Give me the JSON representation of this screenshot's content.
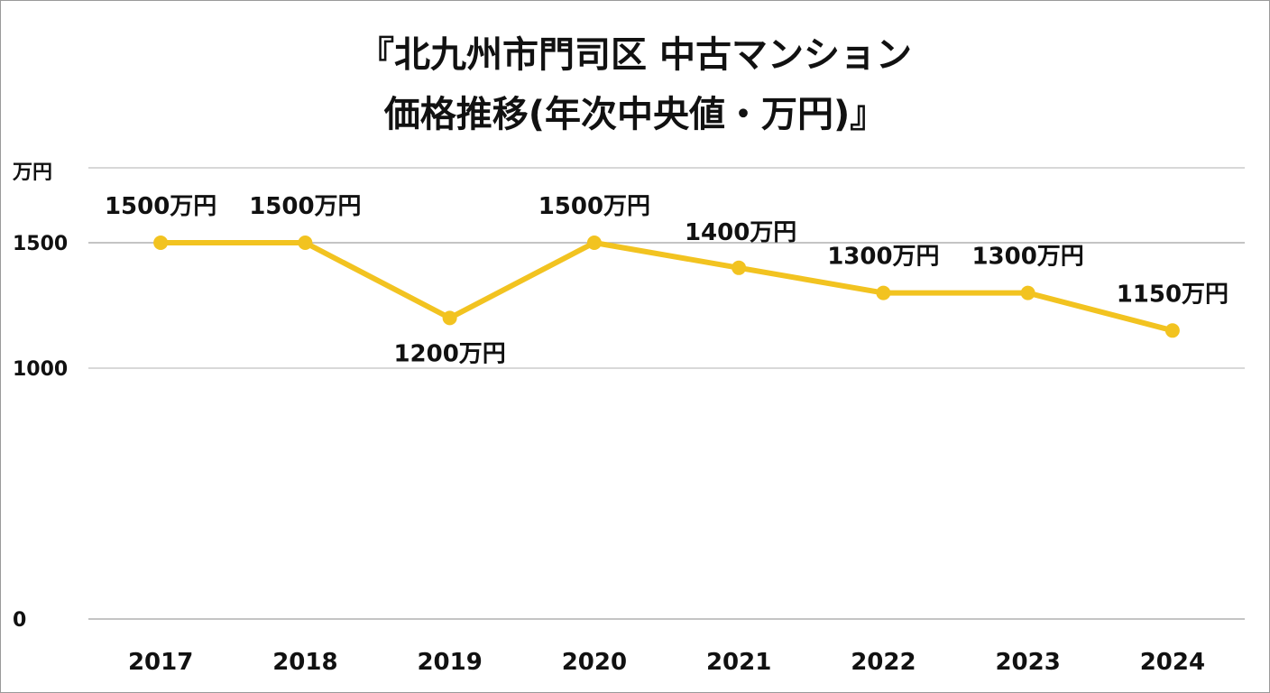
{
  "chart_data": {
    "type": "line",
    "title_line1": "『北九州市門司区 中古マンション",
    "title_line2": "価格推移(年次中央値・万円)』",
    "yunit": "万円",
    "yticks": [
      0,
      1000,
      1500
    ],
    "ylim": [
      0,
      1700
    ],
    "categories": [
      "2017",
      "2018",
      "2019",
      "2020",
      "2021",
      "2022",
      "2023",
      "2024"
    ],
    "series": [
      {
        "values": [
          1500,
          1500,
          1200,
          1500,
          1400,
          1300,
          1300,
          1150
        ],
        "data_labels": [
          "1500万円",
          "1500万円",
          "1200万円",
          "1500万円",
          "1400万円",
          "1300万円",
          "1300万円",
          "1150万円"
        ],
        "label_positions": [
          "above",
          "above",
          "below",
          "above",
          "above-right",
          "above",
          "above",
          "above"
        ]
      }
    ],
    "grid": true,
    "legend": "none",
    "colors": {
      "line": "#F2C320",
      "grid": "#b0b0b0",
      "text": "#111111"
    }
  }
}
